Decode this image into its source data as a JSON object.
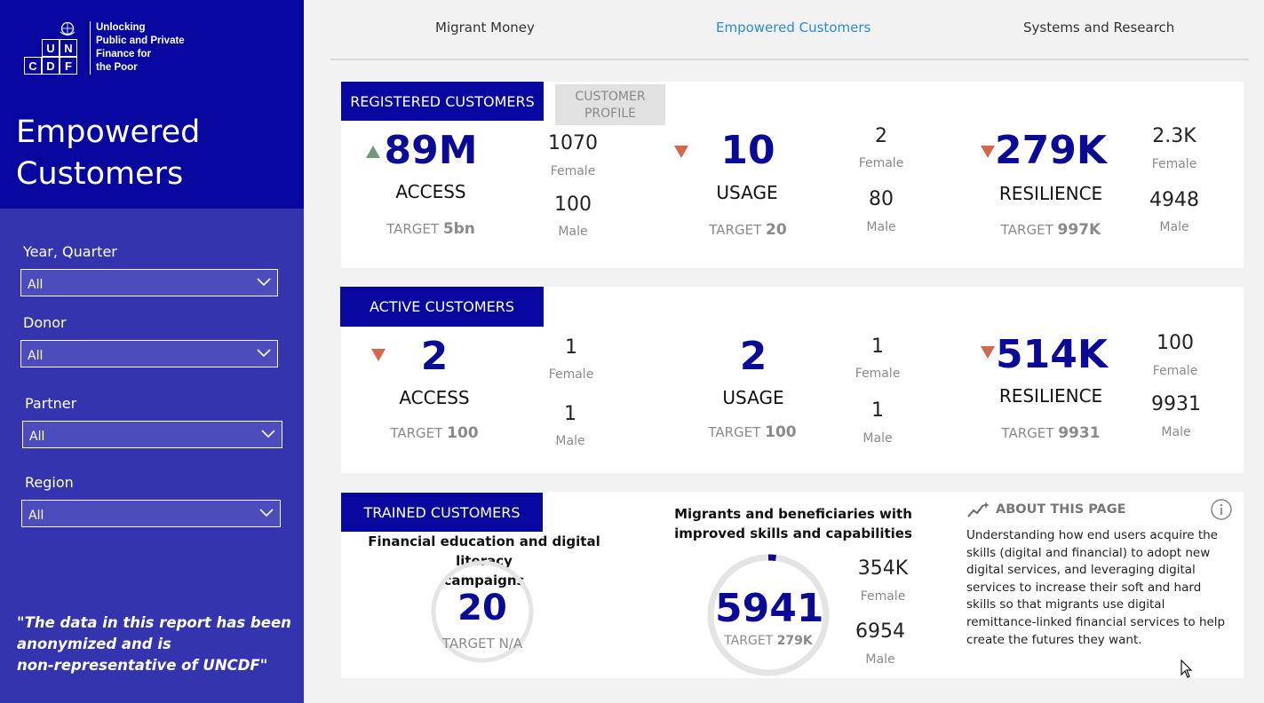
{
  "sidebar": {
    "logo": {
      "letters": [
        "U",
        "N",
        "C",
        "D",
        "F"
      ],
      "text_lines": [
        "Unlocking",
        "Public and Private",
        "Finance for",
        "the Poor"
      ]
    },
    "title_line1": "Empowered",
    "title_line2": "Customers",
    "filters": [
      {
        "label": "Year, Quarter",
        "value": "All"
      },
      {
        "label": "Donor",
        "value": "All"
      },
      {
        "label": "Partner",
        "value": "All"
      },
      {
        "label": "Region",
        "value": "All"
      }
    ],
    "disclaimer_lines": [
      "\"The data in this report has been",
      "anonymized and is",
      "non-representative of UNCDF\""
    ]
  },
  "nav": {
    "tabs": [
      {
        "label": "Migrant Money",
        "active": false
      },
      {
        "label": "Empowered Customers",
        "active": true
      },
      {
        "label": "Systems and Research",
        "active": false
      }
    ]
  },
  "registered": {
    "header": "REGISTERED CUSTOMERS",
    "profile_button_line1": "CUSTOMER",
    "profile_button_line2": "PROFILE",
    "metrics": [
      {
        "trend": "up",
        "value": "89M",
        "label": "ACCESS",
        "target_prefix": "TARGET",
        "target_value": "5bn",
        "female": "1070",
        "female_label": "Female",
        "male": "100",
        "male_label": "Male"
      },
      {
        "trend": "down",
        "value": "10",
        "label": "USAGE",
        "target_prefix": "TARGET",
        "target_value": "20",
        "female": "2",
        "female_label": "Female",
        "male": "80",
        "male_label": "Male"
      },
      {
        "trend": "down",
        "value": "279K",
        "label": "RESILIENCE",
        "target_prefix": "TARGET",
        "target_value": "997K",
        "female": "2.3K",
        "female_label": "Female",
        "male": "4948",
        "male_label": "Male"
      }
    ]
  },
  "active": {
    "header": "ACTIVE CUSTOMERS",
    "metrics": [
      {
        "trend": "down",
        "value": "2",
        "label": "ACCESS",
        "target_prefix": "TARGET",
        "target_value": "100",
        "female": "1",
        "female_label": "Female",
        "male": "1",
        "male_label": "Male"
      },
      {
        "trend": "none",
        "value": "2",
        "label": "USAGE",
        "target_prefix": "TARGET",
        "target_value": "100",
        "female": "1",
        "female_label": "Female",
        "male": "1",
        "male_label": "Male"
      },
      {
        "trend": "down",
        "value": "514K",
        "label": "RESILIENCE",
        "target_prefix": "TARGET",
        "target_value": "9931",
        "female": "100",
        "female_label": "Female",
        "male": "9931",
        "male_label": "Male"
      }
    ]
  },
  "trained": {
    "header": "TRAINED CUSTOMERS",
    "campaign": {
      "title_line1": "Financial education and digital literacy",
      "title_line2": "campaigns",
      "value": "20",
      "target_prefix": "TARGET",
      "target_value": "N/A"
    },
    "skills": {
      "title_line1": "Migrants and beneficiaries with",
      "title_line2": "improved skills and capabilities",
      "value": "5941",
      "target_prefix": "TARGET",
      "target_value": "279K",
      "progress_fraction": 0.021,
      "female": "354K",
      "female_label": "Female",
      "male": "6954",
      "male_label": "Male"
    },
    "about": {
      "title": "ABOUT THIS PAGE",
      "text": "Understanding how end users acquire the skills (digital and financial) to adopt new digital services, and leveraging digital services to increase their soft and hard skills so that migrants use digital remittance-linked financial services to help create the futures they want."
    }
  },
  "colors": {
    "sidebar_top": "#0707a0",
    "sidebar_body": "#3434ae",
    "header_bg": "#0707a0",
    "big_number": "#0a0a96",
    "trend_up": "#6e9a78",
    "trend_down": "#d2694d",
    "active_tab": "#2a8bd8",
    "ring_track": "#e4e4e4",
    "ring_fill": "#0a0a96"
  },
  "icons": [
    "un-globe-icon",
    "chevron-down-icon",
    "trend-up-icon",
    "trend-down-icon",
    "sparkle-chart-icon",
    "info-icon",
    "mouse-cursor-icon"
  ]
}
